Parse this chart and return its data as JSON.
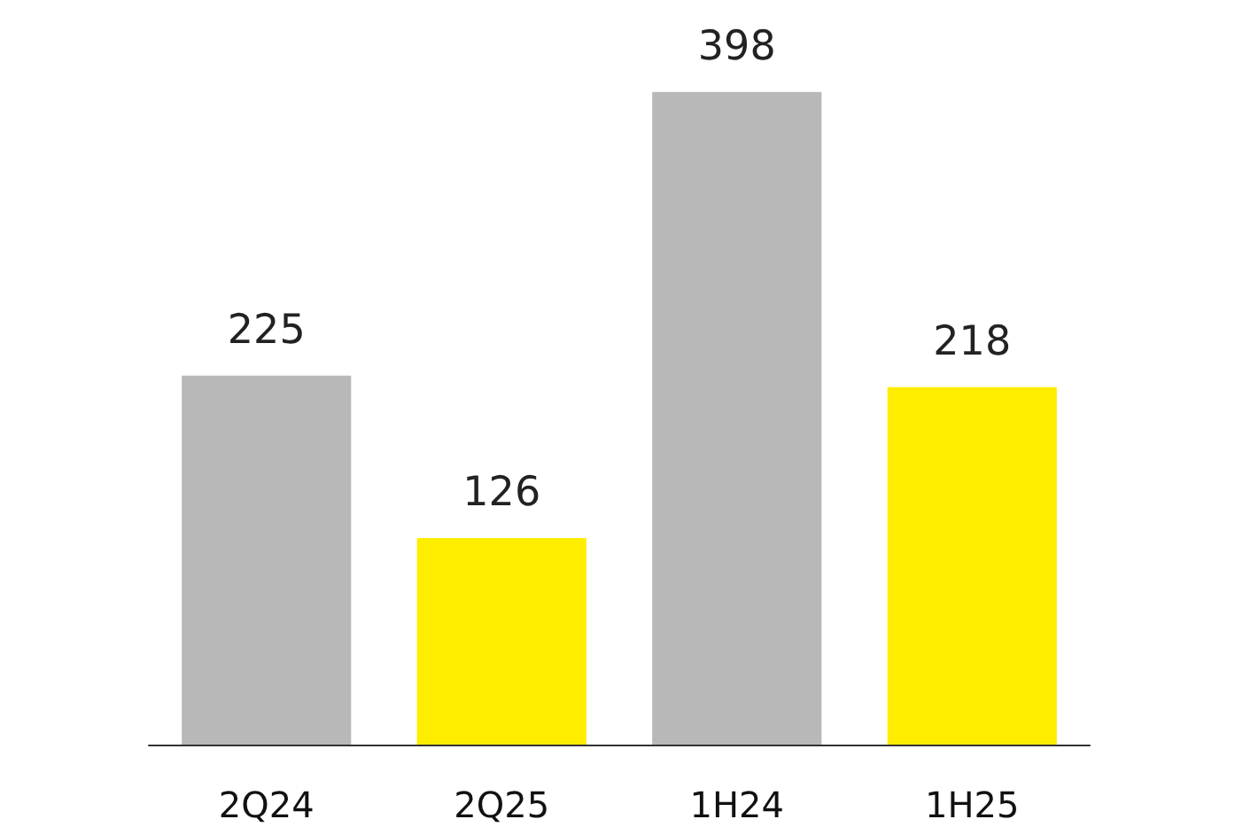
{
  "chart_data": {
    "type": "bar",
    "categories": [
      "2Q24",
      "2Q25",
      "1H24",
      "1H25"
    ],
    "values": [
      225,
      126,
      398,
      218
    ],
    "colors": [
      "#b8b8b8",
      "#ffed00",
      "#b8b8b8",
      "#ffed00"
    ],
    "data_labels": true
  }
}
